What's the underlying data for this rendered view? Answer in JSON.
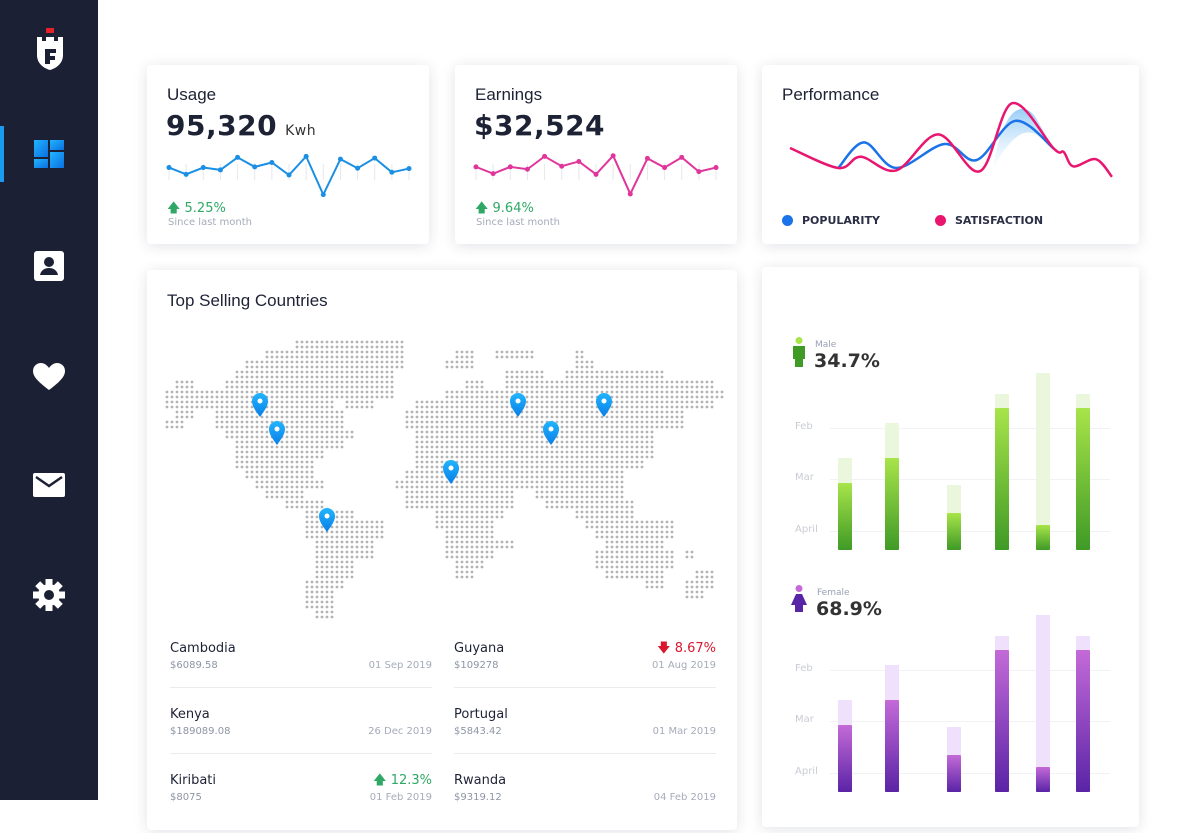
{
  "sidebar": {
    "logo": "castle-logo",
    "active": "dashboard",
    "items": [
      {
        "name": "dashboard",
        "icon": "dashboard-icon"
      },
      {
        "name": "contacts",
        "icon": "contact-card-icon"
      },
      {
        "name": "favorites",
        "icon": "heart-icon"
      },
      {
        "name": "messages",
        "icon": "mail-icon"
      },
      {
        "name": "settings",
        "icon": "gear-icon"
      }
    ],
    "accent": "#1a9bf0",
    "bg": "#1b2035"
  },
  "usage": {
    "title": "Usage",
    "value": "95,320",
    "unit": "Kwh",
    "change": "5.25%",
    "change_dir": "up",
    "since": "Since last month",
    "color": "#1a8fe3",
    "spark": [
      87,
      67,
      87,
      80,
      117,
      89,
      102,
      65,
      120,
      7,
      112,
      85,
      115,
      73,
      84
    ]
  },
  "earnings": {
    "title": "Earnings",
    "value": "$32,524",
    "change": "9.64%",
    "change_dir": "up",
    "since": "Since last month",
    "color": "#e0369b",
    "spark": [
      89,
      69,
      89,
      82,
      120,
      91,
      105,
      67,
      122,
      9,
      114,
      87,
      117,
      75,
      87
    ]
  },
  "chart_data": {
    "type": "line",
    "title": "Performance",
    "series": [
      {
        "name": "POPULARITY",
        "color": "#1a73e8",
        "x": [
          15,
          23,
          33,
          48,
          58,
          70,
          82
        ],
        "y": [
          15,
          47,
          15,
          45,
          25,
          74,
          39
        ]
      },
      {
        "name": "SATISFACTION",
        "color": "#e8166f",
        "x": [
          0,
          15,
          22,
          33,
          46,
          59,
          69,
          82,
          85,
          88,
          95,
          100
        ],
        "y": [
          40,
          15,
          29,
          12,
          57,
          11,
          96,
          39,
          35,
          17,
          26,
          4
        ]
      }
    ],
    "xlim": [
      0,
      100
    ],
    "ylim": [
      0,
      100
    ],
    "legend": "bottom"
  },
  "map": {
    "title": "Top Selling Countries",
    "pin_color": "#1a9bf0",
    "pins": [
      "north-america-1",
      "north-america-2",
      "south-america",
      "africa",
      "europe",
      "asia-1",
      "asia-2"
    ]
  },
  "countries": [
    {
      "name": "Cambodia",
      "amount": "$6089.58",
      "date": "01 Sep 2019",
      "change": ""
    },
    {
      "name": "Guyana",
      "amount": "$109278",
      "date": "01 Aug 2019",
      "change": "8.67%",
      "dir": "down"
    },
    {
      "name": "Kenya",
      "amount": "$189089.08",
      "date": "26 Dec 2019",
      "change": ""
    },
    {
      "name": "Portugal",
      "amount": "$5843.42",
      "date": "01 Mar 2019",
      "change": ""
    },
    {
      "name": "Kiribati",
      "amount": "$8075",
      "date": "01 Feb 2019",
      "change": "12.3%",
      "dir": "up"
    },
    {
      "name": "Rwanda",
      "amount": "$9319.12",
      "date": "04 Feb 2019",
      "change": ""
    }
  ],
  "gender": {
    "ticks": [
      {
        "label": "Feb",
        "value": 0.69
      },
      {
        "label": "Mar",
        "value": 0.4
      },
      {
        "label": "April",
        "value": 0.11
      }
    ],
    "male": {
      "label": "Male",
      "pct": "34.7%",
      "colors": [
        "#a8e44a",
        "#3f9a26",
        "#eaf7dd"
      ],
      "values": [
        0.38,
        0.52,
        0.21,
        0.8,
        0.14,
        0.8
      ],
      "totals": [
        0.52,
        0.72,
        0.37,
        0.88,
        1.0,
        0.88
      ]
    },
    "female": {
      "label": "Female",
      "pct": "68.9%",
      "colors": [
        "#c46ad8",
        "#5a24a6",
        "#efe0fb"
      ],
      "values": [
        0.38,
        0.52,
        0.21,
        0.8,
        0.14,
        0.8
      ],
      "totals": [
        0.52,
        0.72,
        0.37,
        0.88,
        1.0,
        0.88
      ]
    }
  }
}
